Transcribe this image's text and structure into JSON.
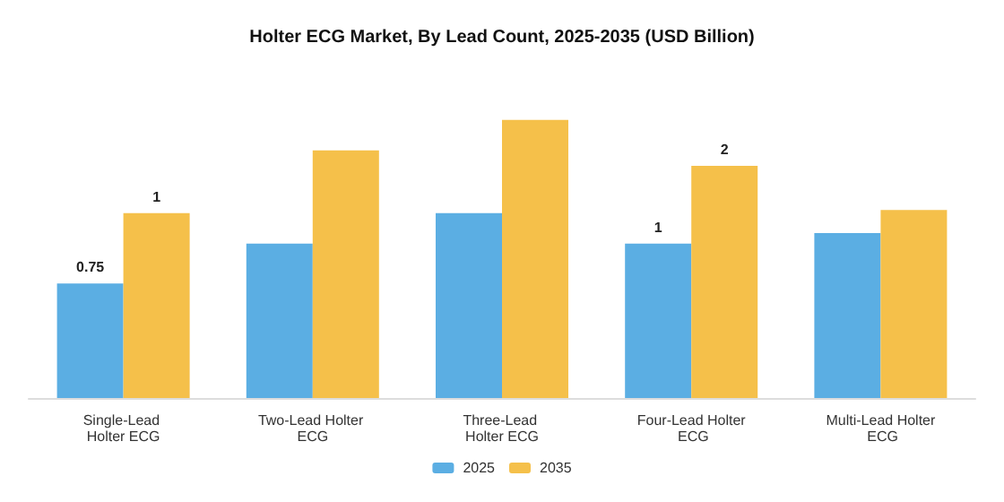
{
  "chart_data": {
    "type": "bar",
    "title": "Holter ECG Market, By Lead Count, 2025-2035 (USD Billion)",
    "categories": [
      "Single-Lead Holter ECG",
      "Two-Lead Holter ECG",
      "Three-Lead Holter ECG",
      "Four-Lead Holter ECG",
      "Multi-Lead Holter ECG"
    ],
    "series": [
      {
        "name": "2025",
        "color": "#5baee3",
        "values": [
          0.75,
          1.01,
          1.21,
          1.01,
          1.08
        ],
        "value_labels": [
          "0.75",
          null,
          null,
          "1",
          null
        ]
      },
      {
        "name": "2035",
        "color": "#f5c04a",
        "values": [
          1.21,
          1.62,
          1.82,
          1.52,
          1.23
        ],
        "value_labels": [
          "1",
          null,
          null,
          "2",
          null
        ]
      }
    ],
    "legend": "bottom"
  }
}
